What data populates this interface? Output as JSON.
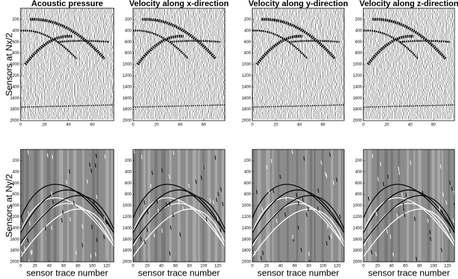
{
  "chart_data": [
    {
      "type": "seismic",
      "title": "Acoustic pressure",
      "ylabel": "Sensors at Nx/2",
      "xlim": [
        0,
        78
      ],
      "xticks": [
        0,
        20,
        40,
        60
      ],
      "ylim": [
        0,
        2000
      ],
      "yticks": [
        200,
        400,
        600,
        800,
        1000,
        1200,
        1400,
        1600,
        1800,
        2000
      ],
      "background": "#ffffff"
    },
    {
      "type": "seismic",
      "title": "Velocity along x-direction",
      "xlim": [
        0,
        78
      ],
      "xticks": [
        0,
        20,
        40,
        60
      ],
      "ylim": [
        0,
        2000
      ],
      "yticks": [
        200,
        400,
        600,
        800,
        1000,
        1200,
        1400,
        1600,
        1800,
        2000
      ],
      "background": "#ffffff"
    },
    {
      "type": "seismic",
      "title": "Velocity along y-direction",
      "xlim": [
        0,
        78
      ],
      "xticks": [
        0,
        20,
        40,
        60
      ],
      "ylim": [
        0,
        2000
      ],
      "yticks": [
        200,
        400,
        600,
        800,
        1000,
        1200,
        1400,
        1600,
        1800,
        2000
      ],
      "background": "#ffffff"
    },
    {
      "type": "seismic",
      "title": "Velocity along z-direction",
      "xlim": [
        0,
        78
      ],
      "xticks": [
        0,
        20,
        40,
        60
      ],
      "ylim": [
        0,
        2000
      ],
      "yticks": [
        200,
        400,
        600,
        800,
        1000,
        1200,
        1400,
        1600,
        1800,
        2000
      ],
      "background": "#ffffff"
    },
    {
      "type": "seismic",
      "ylabel": "Sensors at Ny/2",
      "xlabel": "sensor trace number",
      "xlim": [
        0,
        130
      ],
      "xticks": [
        0,
        20,
        40,
        60,
        80,
        100,
        120
      ],
      "ylim": [
        0,
        2000
      ],
      "yticks": [
        200,
        400,
        600,
        800,
        1000,
        1200,
        1400,
        1600,
        1800,
        2000
      ],
      "background": "#8c8c8c"
    },
    {
      "type": "seismic",
      "xlabel": "sensor trace number",
      "xlim": [
        0,
        130
      ],
      "xticks": [
        0,
        20,
        40,
        60,
        80,
        100,
        120
      ],
      "ylim": [
        0,
        2000
      ],
      "yticks": [
        200,
        400,
        600,
        800,
        1000,
        1200,
        1400,
        1600,
        1800,
        2000
      ],
      "background": "#8c8c8c"
    },
    {
      "type": "seismic",
      "xlabel": "sensor trace number",
      "xlim": [
        0,
        130
      ],
      "xticks": [
        0,
        20,
        40,
        60,
        80,
        100,
        120
      ],
      "ylim": [
        0,
        2000
      ],
      "yticks": [
        200,
        400,
        600,
        800,
        1000,
        1200,
        1400,
        1600,
        1800,
        2000
      ],
      "background": "#8c8c8c"
    },
    {
      "type": "seismic",
      "xlabel": "sensor trace number",
      "xlim": [
        0,
        130
      ],
      "xticks": [
        0,
        20,
        40,
        60,
        80,
        100,
        120
      ],
      "ylim": [
        0,
        2000
      ],
      "yticks": [
        200,
        400,
        600,
        800,
        1000,
        1200,
        1400,
        1600,
        1800,
        2000
      ],
      "background": "#8c8c8c"
    }
  ]
}
